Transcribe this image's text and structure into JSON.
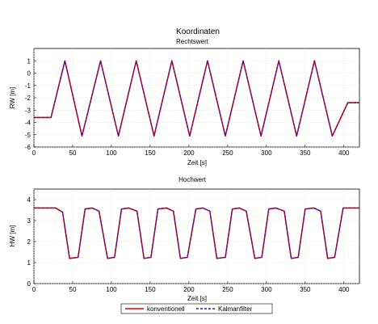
{
  "figure": {
    "title": "Koordinaten",
    "legend": {
      "placement": "bottom-center",
      "entries": [
        {
          "name": "konventionell",
          "color": "#dd0000",
          "style": "solid"
        },
        {
          "name": "Kalmanfilter",
          "color": "#2020c0",
          "style": "dashed"
        }
      ]
    }
  },
  "chart_data": [
    {
      "type": "line",
      "title": "Rechtswert",
      "xlabel": "Zeit [s]",
      "ylabel": "RW [m]",
      "xlim": [
        0,
        420
      ],
      "ylim": [
        -6,
        2
      ],
      "xticks": [
        "0",
        "50",
        "100",
        "150",
        "200",
        "250",
        "300",
        "350",
        "400"
      ],
      "yticks": [
        "-6",
        "-5",
        "-4",
        "-3",
        "-2",
        "-1",
        "0",
        "1"
      ],
      "grid": true,
      "series": [
        {
          "name": "konventionell",
          "color": "#dd0000",
          "x": [
            0,
            20,
            22,
            40,
            62,
            86,
            109,
            132,
            155,
            178,
            201,
            224,
            247,
            270,
            293,
            316,
            339,
            362,
            385,
            405,
            420
          ],
          "y": [
            -3.6,
            -3.6,
            -3.6,
            1.0,
            -5.1,
            1.0,
            -5.1,
            1.0,
            -5.1,
            1.0,
            -5.1,
            1.0,
            -5.1,
            1.0,
            -5.1,
            1.0,
            -5.1,
            1.0,
            -5.1,
            -2.4,
            -2.4
          ]
        },
        {
          "name": "Kalmanfilter",
          "color": "#2020c0",
          "x": [
            0,
            20,
            22,
            40,
            62,
            86,
            109,
            132,
            155,
            178,
            201,
            224,
            247,
            270,
            293,
            316,
            339,
            362,
            385,
            405,
            420
          ],
          "y": [
            -3.6,
            -3.6,
            -3.6,
            1.0,
            -5.1,
            1.0,
            -5.1,
            1.0,
            -5.1,
            1.0,
            -5.1,
            1.0,
            -5.1,
            1.0,
            -5.1,
            1.0,
            -5.1,
            1.0,
            -5.1,
            -2.4,
            -2.4
          ]
        }
      ]
    },
    {
      "type": "line",
      "title": "Hochwert",
      "xlabel": "Zeit [s]",
      "ylabel": "HW [m]",
      "xlim": [
        0,
        420
      ],
      "ylim": [
        0,
        4.5
      ],
      "xticks": [
        "0",
        "50",
        "100",
        "150",
        "200",
        "250",
        "300",
        "350",
        "400"
      ],
      "yticks": [
        "0",
        "1",
        "2",
        "3",
        "4"
      ],
      "grid": true,
      "series": [
        {
          "name": "konventionell",
          "color": "#dd0000",
          "x": [
            0,
            28,
            37,
            46,
            57,
            66,
            75,
            84,
            95,
            104,
            113,
            122,
            133,
            142,
            151,
            160,
            171,
            180,
            189,
            198,
            209,
            218,
            227,
            236,
            247,
            256,
            265,
            274,
            285,
            294,
            303,
            312,
            323,
            332,
            341,
            350,
            361,
            370,
            379,
            388,
            399,
            408,
            420
          ],
          "y": [
            3.6,
            3.6,
            3.4,
            1.2,
            1.25,
            3.55,
            3.6,
            3.45,
            1.2,
            1.25,
            3.55,
            3.6,
            3.45,
            1.2,
            1.25,
            3.55,
            3.6,
            3.45,
            1.2,
            1.25,
            3.55,
            3.6,
            3.45,
            1.2,
            1.25,
            3.55,
            3.6,
            3.45,
            1.2,
            1.25,
            3.55,
            3.6,
            3.45,
            1.2,
            1.25,
            3.55,
            3.6,
            3.45,
            1.2,
            1.25,
            3.6,
            3.6,
            3.6
          ]
        },
        {
          "name": "Kalmanfilter",
          "color": "#2020c0",
          "x": [
            0,
            28,
            37,
            46,
            57,
            66,
            75,
            84,
            95,
            104,
            113,
            122,
            133,
            142,
            151,
            160,
            171,
            180,
            189,
            198,
            209,
            218,
            227,
            236,
            247,
            256,
            265,
            274,
            285,
            294,
            303,
            312,
            323,
            332,
            341,
            350,
            361,
            370,
            379,
            388,
            399,
            408,
            420
          ],
          "y": [
            3.6,
            3.6,
            3.4,
            1.2,
            1.25,
            3.55,
            3.6,
            3.45,
            1.2,
            1.25,
            3.55,
            3.6,
            3.45,
            1.2,
            1.25,
            3.55,
            3.6,
            3.45,
            1.2,
            1.25,
            3.55,
            3.6,
            3.45,
            1.2,
            1.25,
            3.55,
            3.6,
            3.45,
            1.2,
            1.25,
            3.55,
            3.6,
            3.45,
            1.2,
            1.25,
            3.55,
            3.6,
            3.45,
            1.2,
            1.25,
            3.6,
            3.6,
            3.6
          ]
        }
      ]
    }
  ]
}
